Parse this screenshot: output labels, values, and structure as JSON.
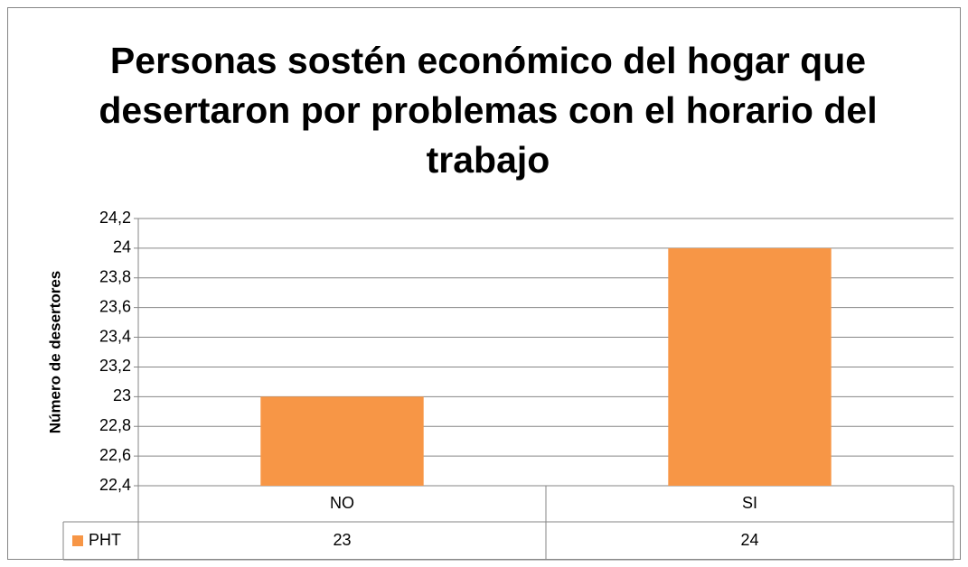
{
  "chart_data": {
    "type": "bar",
    "title": "Personas sostén económico del hogar que desertaron por problemas con el  horario del trabajo",
    "y_label": "Número de desertores",
    "categories": [
      "NO",
      "SI"
    ],
    "series": [
      {
        "name": "PHT",
        "color": "#f79646",
        "values": [
          23,
          24
        ]
      }
    ],
    "ylim": [
      22.4,
      24.2
    ],
    "yticks": [
      {
        "value": 22.4,
        "label": "22,4"
      },
      {
        "value": 22.6,
        "label": "22,6"
      },
      {
        "value": 22.8,
        "label": "22,8"
      },
      23,
      {
        "value": 23.2,
        "label": "23,2"
      },
      {
        "value": 23.4,
        "label": "23,4"
      },
      {
        "value": 23.6,
        "label": "23,6"
      },
      {
        "value": 23.8,
        "label": "23,8"
      },
      24,
      {
        "value": 24.2,
        "label": "24,2"
      }
    ],
    "grid": true,
    "data_table": true
  }
}
